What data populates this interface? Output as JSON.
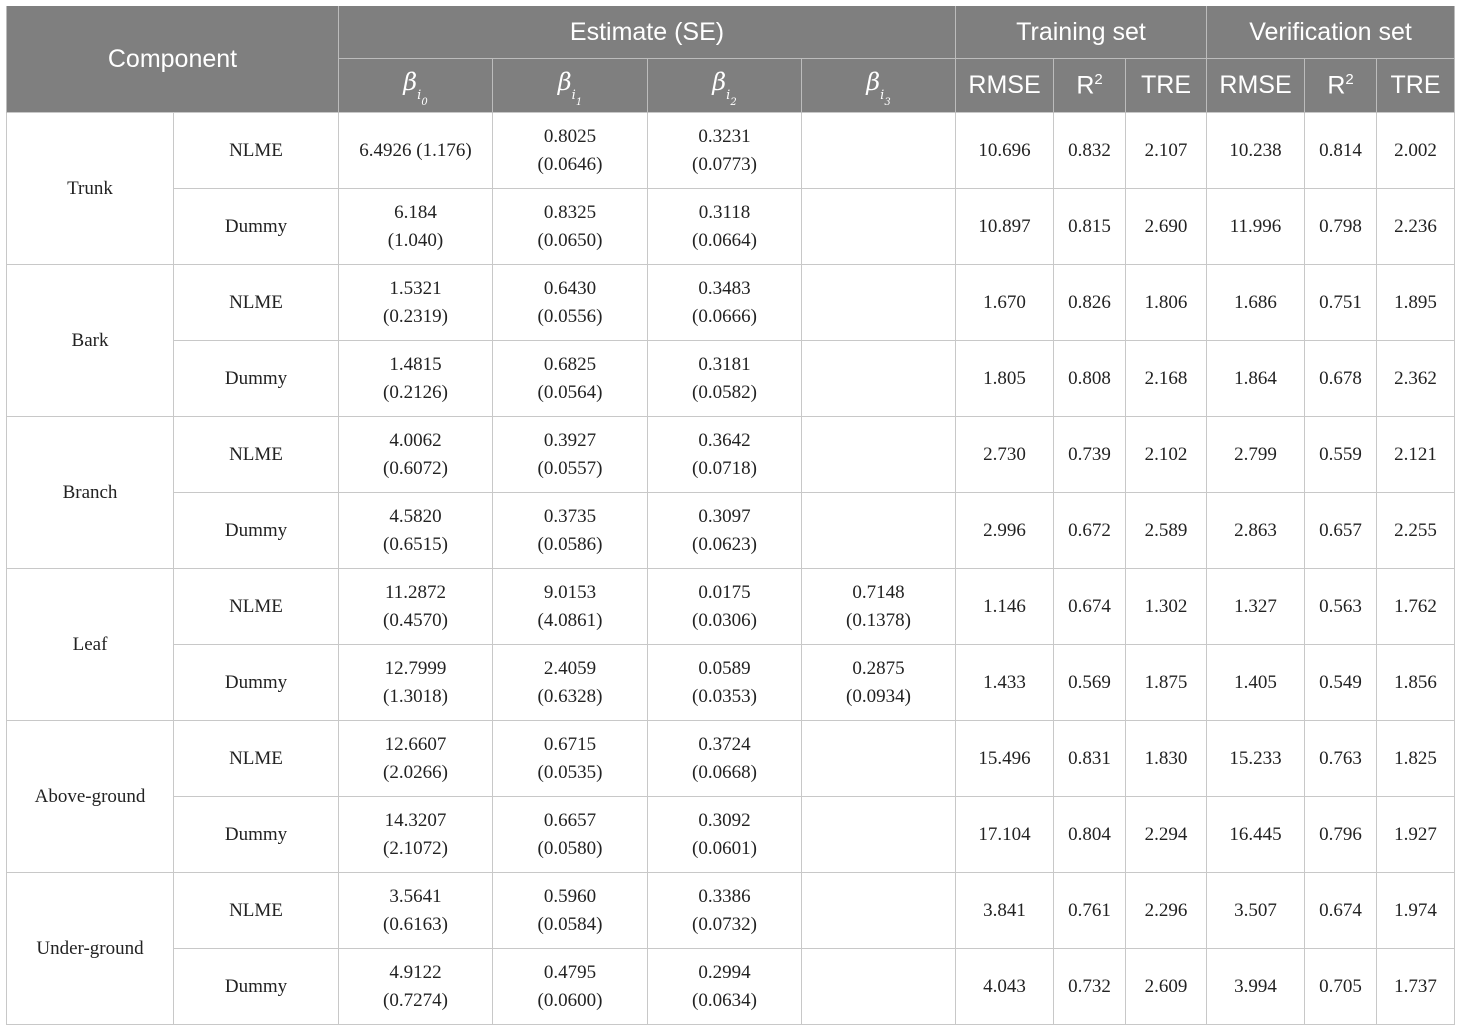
{
  "header": {
    "component": "Component",
    "estimate": "Estimate (SE)",
    "training": "Training set",
    "verification": "Verification set",
    "beta_symbol": "β",
    "beta_sub_letter": "i",
    "beta_indices": [
      "0",
      "1",
      "2",
      "3"
    ],
    "rmse": "RMSE",
    "r2_base": "R",
    "r2_sup": "2",
    "tre": "TRE"
  },
  "groups": [
    {
      "component": "Trunk",
      "rows": [
        {
          "model": "NLME",
          "b0": [
            "6.4926 (1.176)"
          ],
          "b1": [
            "0.8025",
            "(0.0646)"
          ],
          "b2": [
            "0.3231",
            "(0.0773)"
          ],
          "b3": [],
          "train": [
            "10.696",
            "0.832",
            "2.107"
          ],
          "verif": [
            "10.238",
            "0.814",
            "2.002"
          ]
        },
        {
          "model": "Dummy",
          "b0": [
            "6.184",
            "(1.040)"
          ],
          "b1": [
            "0.8325",
            "(0.0650)"
          ],
          "b2": [
            "0.3118",
            "(0.0664)"
          ],
          "b3": [],
          "train": [
            "10.897",
            "0.815",
            "2.690"
          ],
          "verif": [
            "11.996",
            "0.798",
            "2.236"
          ]
        }
      ]
    },
    {
      "component": "Bark",
      "rows": [
        {
          "model": "NLME",
          "b0": [
            "1.5321",
            "(0.2319)"
          ],
          "b1": [
            "0.6430",
            "(0.0556)"
          ],
          "b2": [
            "0.3483",
            "(0.0666)"
          ],
          "b3": [],
          "train": [
            "1.670",
            "0.826",
            "1.806"
          ],
          "verif": [
            "1.686",
            "0.751",
            "1.895"
          ]
        },
        {
          "model": "Dummy",
          "b0": [
            "1.4815",
            "(0.2126)"
          ],
          "b1": [
            "0.6825",
            "(0.0564)"
          ],
          "b2": [
            "0.3181",
            "(0.0582)"
          ],
          "b3": [],
          "train": [
            "1.805",
            "0.808",
            "2.168"
          ],
          "verif": [
            "1.864",
            "0.678",
            "2.362"
          ]
        }
      ]
    },
    {
      "component": "Branch",
      "rows": [
        {
          "model": "NLME",
          "b0": [
            "4.0062",
            "(0.6072)"
          ],
          "b1": [
            "0.3927",
            "(0.0557)"
          ],
          "b2": [
            "0.3642",
            "(0.0718)"
          ],
          "b3": [],
          "train": [
            "2.730",
            "0.739",
            "2.102"
          ],
          "verif": [
            "2.799",
            "0.559",
            "2.121"
          ]
        },
        {
          "model": "Dummy",
          "b0": [
            "4.5820",
            "(0.6515)"
          ],
          "b1": [
            "0.3735",
            "(0.0586)"
          ],
          "b2": [
            "0.3097",
            "(0.0623)"
          ],
          "b3": [],
          "train": [
            "2.996",
            "0.672",
            "2.589"
          ],
          "verif": [
            "2.863",
            "0.657",
            "2.255"
          ]
        }
      ]
    },
    {
      "component": "Leaf",
      "rows": [
        {
          "model": "NLME",
          "b0": [
            "11.2872",
            "(0.4570)"
          ],
          "b1": [
            "9.0153",
            "(4.0861)"
          ],
          "b2": [
            "0.0175",
            "(0.0306)"
          ],
          "b3": [
            "0.7148",
            "(0.1378)"
          ],
          "train": [
            "1.146",
            "0.674",
            "1.302"
          ],
          "verif": [
            "1.327",
            "0.563",
            "1.762"
          ]
        },
        {
          "model": "Dummy",
          "b0": [
            "12.7999",
            "(1.3018)"
          ],
          "b1": [
            "2.4059",
            "(0.6328)"
          ],
          "b2": [
            "0.0589",
            "(0.0353)"
          ],
          "b3": [
            "0.2875",
            "(0.0934)"
          ],
          "train": [
            "1.433",
            "0.569",
            "1.875"
          ],
          "verif": [
            "1.405",
            "0.549",
            "1.856"
          ]
        }
      ]
    },
    {
      "component": "Above-ground",
      "rows": [
        {
          "model": "NLME",
          "b0": [
            "12.6607",
            "(2.0266)"
          ],
          "b1": [
            "0.6715",
            "(0.0535)"
          ],
          "b2": [
            "0.3724",
            "(0.0668)"
          ],
          "b3": [],
          "train": [
            "15.496",
            "0.831",
            "1.830"
          ],
          "verif": [
            "15.233",
            "0.763",
            "1.825"
          ]
        },
        {
          "model": "Dummy",
          "b0": [
            "14.3207",
            "(2.1072)"
          ],
          "b1": [
            "0.6657",
            "(0.0580)"
          ],
          "b2": [
            "0.3092",
            "(0.0601)"
          ],
          "b3": [],
          "train": [
            "17.104",
            "0.804",
            "2.294"
          ],
          "verif": [
            "16.445",
            "0.796",
            "1.927"
          ]
        }
      ]
    },
    {
      "component": "Under-ground",
      "rows": [
        {
          "model": "NLME",
          "b0": [
            "3.5641",
            "(0.6163)"
          ],
          "b1": [
            "0.5960",
            "(0.0584)"
          ],
          "b2": [
            "0.3386",
            "(0.0732)"
          ],
          "b3": [],
          "train": [
            "3.841",
            "0.761",
            "2.296"
          ],
          "verif": [
            "3.507",
            "0.674",
            "1.974"
          ]
        },
        {
          "model": "Dummy",
          "b0": [
            "4.9122",
            "(0.7274)"
          ],
          "b1": [
            "0.4795",
            "(0.0600)"
          ],
          "b2": [
            "0.2994",
            "(0.0634)"
          ],
          "b3": [],
          "train": [
            "4.043",
            "0.732",
            "2.609"
          ],
          "verif": [
            "3.994",
            "0.705",
            "1.737"
          ]
        }
      ]
    }
  ]
}
